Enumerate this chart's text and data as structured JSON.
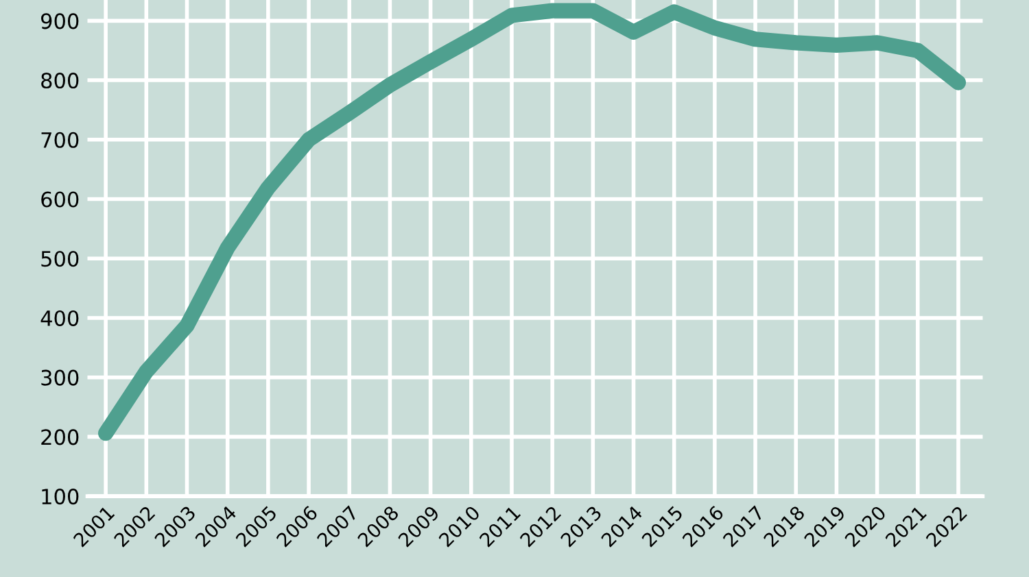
{
  "chart_data": {
    "type": "line",
    "categories": [
      "2001",
      "2002",
      "2003",
      "2004",
      "2005",
      "2006",
      "2007",
      "2008",
      "2009",
      "2010",
      "2011",
      "2012",
      "2013",
      "2014",
      "2015",
      "2016",
      "2017",
      "2018",
      "2019",
      "2020",
      "2021",
      "2022"
    ],
    "series": [
      {
        "color": "#4fa08f",
        "values": [
          206,
          310,
          387,
          518,
          619,
          700,
          745,
          792,
          831,
          869,
          909,
          917,
          917,
          881,
          915,
          888,
          869,
          863,
          859,
          863,
          850,
          796
        ]
      }
    ],
    "ylim": [
      100,
      935
    ],
    "yticks": [
      100,
      200,
      300,
      400,
      500,
      600,
      700,
      800,
      900
    ],
    "grid": true,
    "line_style": "solid"
  }
}
